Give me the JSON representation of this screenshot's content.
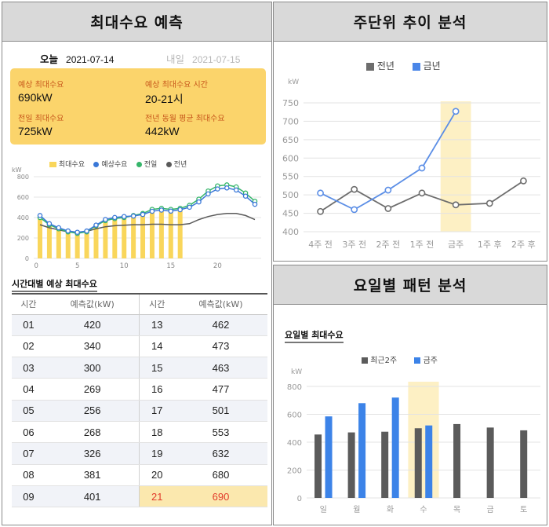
{
  "left": {
    "title": "최대수요 예측",
    "tabs": [
      {
        "name": "오늘",
        "date": "2021-07-14"
      },
      {
        "name": "내일",
        "date": "2021-07-15"
      }
    ],
    "summary": [
      {
        "label": "예상 최대수요",
        "value": "690kW"
      },
      {
        "label": "예상 최대수요 시간",
        "value": "20-21시"
      },
      {
        "label": "전일 최대수요",
        "value": "725kW"
      },
      {
        "label": "전년 동월 평균 최대수요",
        "value": "442kW"
      }
    ],
    "table_title": "시간대별 예상 최대수요",
    "table_headers": [
      "시간",
      "예측값(kW)",
      "시간",
      "예측값(kW)"
    ],
    "table_rows": [
      [
        "01",
        "420",
        "13",
        "462"
      ],
      [
        "02",
        "340",
        "14",
        "473"
      ],
      [
        "03",
        "300",
        "15",
        "463"
      ],
      [
        "04",
        "269",
        "16",
        "477"
      ],
      [
        "05",
        "256",
        "17",
        "501"
      ],
      [
        "06",
        "268",
        "18",
        "553"
      ],
      [
        "07",
        "326",
        "19",
        "632"
      ],
      [
        "08",
        "381",
        "20",
        "680"
      ],
      [
        "09",
        "401",
        "21",
        "690"
      ]
    ],
    "highlight_row_index": 8,
    "colors": {
      "summary_bg": "#fbd46b",
      "highlight_text": "#e23b2a",
      "highlight_bg": "#fbe8ae"
    }
  },
  "weekly": {
    "title": "주단위 추이 분석"
  },
  "daily": {
    "title": "요일별 패턴 분석",
    "subtitle": "요일별 최대수요"
  },
  "chart_data": [
    {
      "id": "hourly",
      "type": "bar+line",
      "unit": "kW",
      "legend": [
        "최대수요",
        "예상수요",
        "전일",
        "전년"
      ],
      "colors": {
        "최대수요": "#f9d65b",
        "예상수요": "#3a78d8",
        "전일": "#35b56a",
        "전년": "#5a5a5a"
      },
      "xticks": [
        0,
        5,
        10,
        15,
        20
      ],
      "ylim": [
        0,
        800
      ],
      "yticks": [
        0,
        200,
        400,
        600,
        800
      ],
      "hours": [
        1,
        2,
        3,
        4,
        5,
        6,
        7,
        8,
        9,
        10,
        11,
        12,
        13,
        14,
        15,
        16,
        17,
        18,
        19,
        20,
        21,
        22,
        23,
        24
      ],
      "actual": [
        410,
        350,
        310,
        275,
        260,
        270,
        330,
        385,
        400,
        395,
        410,
        420,
        460,
        470,
        465,
        480
      ],
      "forecast": [
        420,
        340,
        300,
        269,
        256,
        268,
        326,
        381,
        401,
        410,
        415,
        430,
        462,
        473,
        463,
        477,
        501,
        553,
        632,
        680,
        690,
        670,
        610,
        530
      ],
      "yesterday": [
        400,
        330,
        290,
        260,
        245,
        260,
        320,
        370,
        390,
        400,
        420,
        440,
        480,
        490,
        480,
        490,
        520,
        580,
        660,
        710,
        720,
        700,
        640,
        560
      ],
      "last_year": [
        330,
        300,
        280,
        260,
        255,
        265,
        290,
        310,
        320,
        325,
        330,
        330,
        335,
        335,
        330,
        330,
        340,
        380,
        410,
        430,
        440,
        440,
        420,
        380
      ]
    },
    {
      "id": "weekly",
      "type": "line",
      "unit": "kW",
      "legend": [
        "전년",
        "금년"
      ],
      "colors": {
        "전년": "#6d6d6d",
        "금년": "#5b8ee6",
        "highlight": "#fdf0c4"
      },
      "categories": [
        "4주 전",
        "3주 전",
        "2주 전",
        "1주 전",
        "금주",
        "1주 후",
        "2주 후"
      ],
      "highlight_category": "금주",
      "ylim": [
        400,
        750
      ],
      "yticks": [
        400,
        450,
        500,
        550,
        600,
        650,
        700,
        750
      ],
      "series": [
        {
          "name": "전년",
          "values": [
            455,
            515,
            463,
            505,
            473,
            477,
            538
          ]
        },
        {
          "name": "금년",
          "values": [
            505,
            460,
            513,
            573,
            727,
            null,
            null
          ]
        }
      ]
    },
    {
      "id": "daily",
      "type": "bar",
      "unit": "kW",
      "legend": [
        "최근2주",
        "금주"
      ],
      "colors": {
        "최근2주": "#5b5b5b",
        "금주": "#3c83e8",
        "highlight": "#fdf0c4"
      },
      "categories": [
        "일",
        "월",
        "화",
        "수",
        "목",
        "금",
        "토"
      ],
      "highlight_category": "수",
      "ylim": [
        0,
        800
      ],
      "yticks": [
        0,
        200,
        400,
        600,
        800
      ],
      "series": [
        {
          "name": "최근2주",
          "values": [
            455,
            470,
            475,
            500,
            530,
            505,
            485
          ]
        },
        {
          "name": "금주",
          "values": [
            585,
            680,
            720,
            520,
            null,
            null,
            null
          ]
        }
      ]
    }
  ]
}
